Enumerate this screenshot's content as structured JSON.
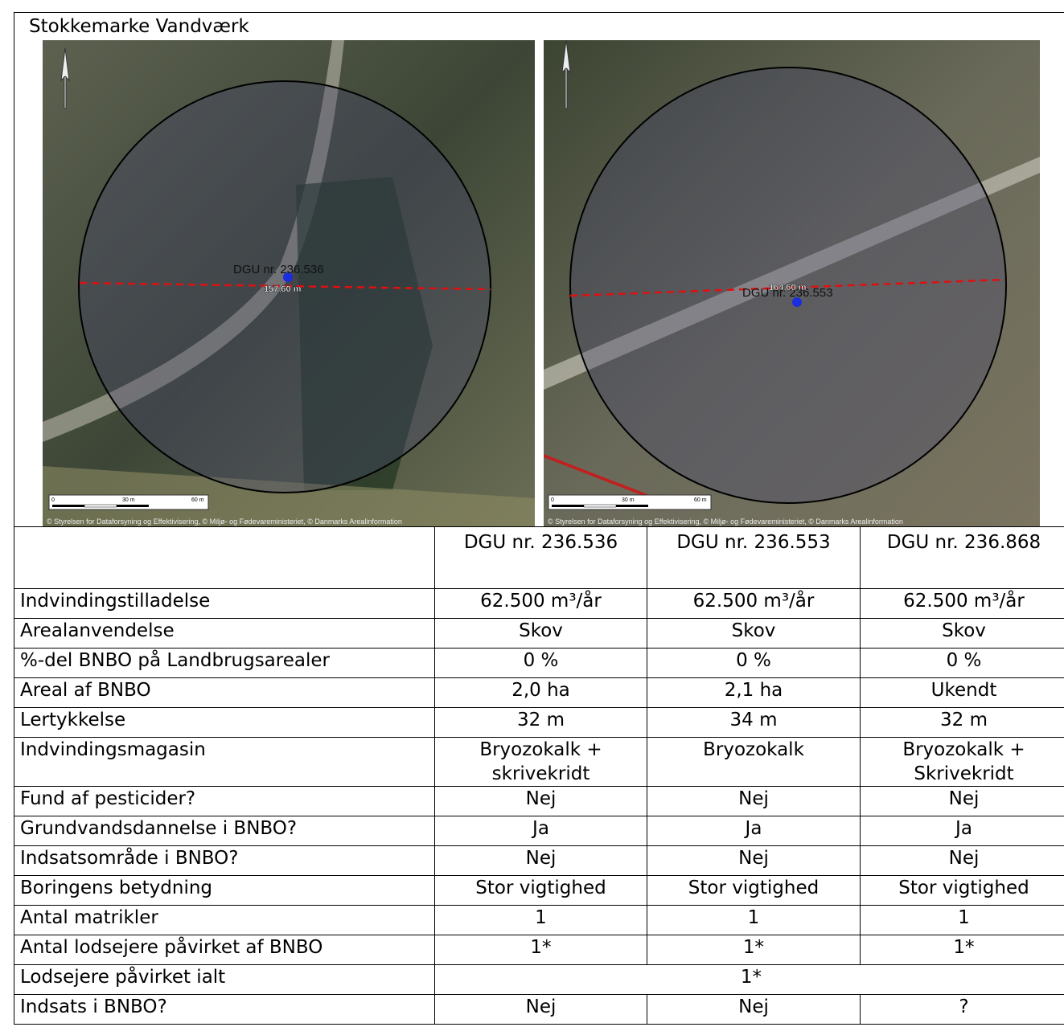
{
  "title": "Stokkemarke Vandværk",
  "maps": [
    {
      "well_label": "DGU nr. 236.536",
      "distance_label": "157,60 m",
      "scale_labels": [
        "0",
        "30 m",
        "60 m"
      ],
      "copyright": "© Styrelsen for Dataforsyning og Effektivisering, © Miljø- og Fødevareministeriet, © Danmarks Arealinformation"
    },
    {
      "well_label": "DGU nr. 236.553",
      "distance_label": "164,60 m",
      "scale_labels": [
        "0",
        "30 m",
        "60 m"
      ],
      "copyright": "© Styrelsen for Dataforsyning og Effektivisering, © Miljø- og Fødevareministeriet, © Danmarks Arealinformation"
    }
  ],
  "table": {
    "header": [
      "DGU nr. 236.536",
      "DGU nr. 236.553",
      "DGU nr. 236.868"
    ],
    "rows": [
      {
        "label": "Indvindingstilladelse",
        "cells": [
          "62.500 m³/år",
          "62.500 m³/år",
          "62.500 m³/år"
        ]
      },
      {
        "label": "Arealanvendelse",
        "cells": [
          "Skov",
          "Skov",
          "Skov"
        ]
      },
      {
        "label": "%-del BNBO på Landbrugsarealer",
        "cells": [
          "0 %",
          "0 %",
          "0 %"
        ]
      },
      {
        "label": "Areal af BNBO",
        "cells": [
          "2,0 ha",
          "2,1 ha",
          "Ukendt"
        ]
      },
      {
        "label": "Lertykkelse",
        "cells": [
          "32 m",
          "34 m",
          "32 m"
        ]
      },
      {
        "label": "Indvindingsmagasin",
        "cells": [
          "Bryozokalk + skrivekridt",
          "Bryozokalk",
          "Bryozokalk + Skrivekridt"
        ]
      },
      {
        "label": "Fund af pesticider?",
        "cells": [
          "Nej",
          "Nej",
          "Nej"
        ]
      },
      {
        "label": "Grundvandsdannelse i BNBO?",
        "cells": [
          "Ja",
          "Ja",
          "Ja"
        ]
      },
      {
        "label": "Indsatsområde i BNBO?",
        "cells": [
          "Nej",
          "Nej",
          "Nej"
        ]
      },
      {
        "label": "Boringens betydning",
        "cells": [
          "Stor vigtighed",
          "Stor vigtighed",
          "Stor vigtighed"
        ]
      },
      {
        "label": "Antal matrikler",
        "cells": [
          "1",
          "1",
          "1"
        ]
      },
      {
        "label": "Antal lodsejere påvirket af BNBO",
        "cells": [
          "1*",
          "1*",
          "1*"
        ]
      },
      {
        "label": "Lodsejere påvirket ialt",
        "cells": [
          "1*"
        ]
      },
      {
        "label": "Indsats i BNBO?",
        "cells": [
          "Nej",
          "Nej",
          "?"
        ]
      }
    ]
  }
}
